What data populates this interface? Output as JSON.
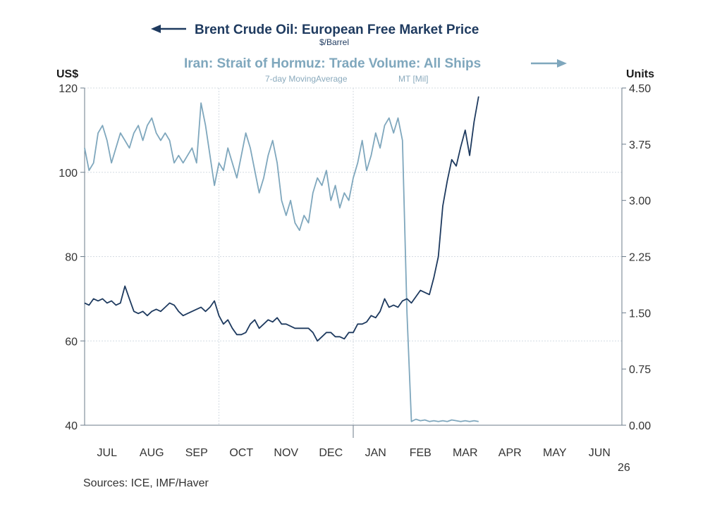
{
  "chart_data": {
    "type": "line",
    "title_left": "Brent Crude Oil: European Free Market Price",
    "subtitle_left": "$/Barrel",
    "title_right": "Iran: Strait of Hormuz: Trade Volume: All Ships",
    "subtitle_right_a": "7-day MovingAverage",
    "subtitle_right_b": "MT [Mil]",
    "ylabel_left": "US$",
    "ylabel_right": "Units",
    "ylim_left": [
      40,
      120
    ],
    "ylim_right": [
      0,
      4.5
    ],
    "yticks_left": [
      "120",
      "100",
      "80",
      "60",
      "40"
    ],
    "yticks_right": [
      "4.50",
      "3.75",
      "3.00",
      "2.25",
      "1.50",
      "0.75",
      "0.00"
    ],
    "x_months": [
      "JUL",
      "AUG",
      "SEP",
      "OCT",
      "NOV",
      "DEC",
      "JAN",
      "FEB",
      "MAR",
      "APR",
      "MAY",
      "JUN"
    ],
    "year_label": "26",
    "source": "Sources:  ICE, IMF/Haver",
    "grid": true,
    "x_unit": "months from July 1 (fractional)",
    "series": [
      {
        "name": "Brent Crude Oil: European Free Market Price",
        "axis": "left",
        "color": "#1e3a5f",
        "x": [
          0.0,
          0.1,
          0.2,
          0.3,
          0.4,
          0.5,
          0.6,
          0.7,
          0.8,
          0.9,
          1.0,
          1.1,
          1.2,
          1.3,
          1.4,
          1.5,
          1.6,
          1.7,
          1.8,
          1.9,
          2.0,
          2.1,
          2.2,
          2.3,
          2.4,
          2.5,
          2.6,
          2.7,
          2.8,
          2.9,
          3.0,
          3.1,
          3.2,
          3.3,
          3.4,
          3.5,
          3.6,
          3.7,
          3.8,
          3.9,
          4.0,
          4.1,
          4.2,
          4.3,
          4.4,
          4.5,
          4.6,
          4.7,
          4.8,
          4.9,
          5.0,
          5.1,
          5.2,
          5.3,
          5.4,
          5.5,
          5.6,
          5.7,
          5.8,
          5.9,
          6.0,
          6.1,
          6.2,
          6.3,
          6.4,
          6.5,
          6.6,
          6.7,
          6.8,
          6.9,
          7.0,
          7.1,
          7.2,
          7.3,
          7.4,
          7.5,
          7.6,
          7.7,
          7.8,
          7.9,
          8.0,
          8.1,
          8.2,
          8.3,
          8.4,
          8.5,
          8.6,
          8.7,
          8.8
        ],
        "values": [
          69,
          68.5,
          70,
          69.5,
          70,
          69,
          69.5,
          68.5,
          69,
          73,
          70,
          67,
          66.5,
          67,
          66,
          67,
          67.5,
          67,
          68,
          69,
          68.5,
          67,
          66,
          66.5,
          67,
          67.5,
          68,
          67,
          68,
          69.5,
          66,
          64,
          65,
          63,
          61.5,
          61.5,
          62,
          64,
          65,
          63,
          64,
          65,
          64.5,
          65.5,
          64,
          64,
          63.5,
          63,
          63,
          63,
          63,
          62,
          60,
          61,
          62,
          62,
          61,
          61,
          60.5,
          62,
          62,
          64,
          64,
          64.5,
          66,
          65.5,
          67,
          70,
          68,
          68.5,
          68,
          69.5,
          70,
          69,
          70.5,
          72,
          71.5,
          71,
          75,
          80,
          92,
          98,
          103,
          101.5,
          106,
          110,
          104,
          112,
          118
        ]
      },
      {
        "name": "Iran: Strait of Hormuz: Trade Volume: All Ships",
        "axis": "right",
        "color": "#7fa7bd",
        "x": [
          0.0,
          0.1,
          0.2,
          0.3,
          0.4,
          0.5,
          0.6,
          0.7,
          0.8,
          0.9,
          1.0,
          1.1,
          1.2,
          1.3,
          1.4,
          1.5,
          1.6,
          1.7,
          1.8,
          1.9,
          2.0,
          2.1,
          2.2,
          2.3,
          2.4,
          2.5,
          2.6,
          2.7,
          2.8,
          2.9,
          3.0,
          3.1,
          3.2,
          3.3,
          3.4,
          3.5,
          3.6,
          3.7,
          3.8,
          3.9,
          4.0,
          4.1,
          4.2,
          4.3,
          4.4,
          4.5,
          4.6,
          4.7,
          4.8,
          4.9,
          5.0,
          5.1,
          5.2,
          5.3,
          5.4,
          5.5,
          5.6,
          5.7,
          5.8,
          5.9,
          6.0,
          6.1,
          6.2,
          6.3,
          6.4,
          6.5,
          6.6,
          6.7,
          6.8,
          6.9,
          7.0,
          7.1,
          7.2,
          7.3,
          7.4,
          7.5,
          7.6,
          7.7,
          7.8,
          7.9,
          8.0,
          8.1,
          8.2,
          8.3,
          8.4,
          8.5,
          8.6,
          8.7,
          8.8
        ],
        "values": [
          3.7,
          3.4,
          3.5,
          3.9,
          4.0,
          3.8,
          3.5,
          3.7,
          3.9,
          3.8,
          3.7,
          3.9,
          4.0,
          3.8,
          4.0,
          4.1,
          3.9,
          3.8,
          3.9,
          3.8,
          3.5,
          3.6,
          3.5,
          3.6,
          3.7,
          3.5,
          4.3,
          4.0,
          3.6,
          3.2,
          3.5,
          3.4,
          3.7,
          3.5,
          3.3,
          3.6,
          3.9,
          3.7,
          3.4,
          3.1,
          3.3,
          3.6,
          3.8,
          3.5,
          3.0,
          2.8,
          3.0,
          2.7,
          2.6,
          2.8,
          2.7,
          3.1,
          3.3,
          3.2,
          3.4,
          3.0,
          3.2,
          2.9,
          3.1,
          3.0,
          3.3,
          3.5,
          3.8,
          3.4,
          3.6,
          3.9,
          3.7,
          4.0,
          4.1,
          3.9,
          4.1,
          3.8,
          1.5,
          0.05,
          0.08,
          0.06,
          0.07,
          0.05,
          0.06,
          0.05,
          0.06,
          0.05,
          0.07,
          0.06,
          0.05,
          0.06,
          0.05,
          0.06,
          0.05
        ],
        "note_values": "values beyond index 72 approximate post-March collapse; plotted only through visible end"
      }
    ]
  }
}
